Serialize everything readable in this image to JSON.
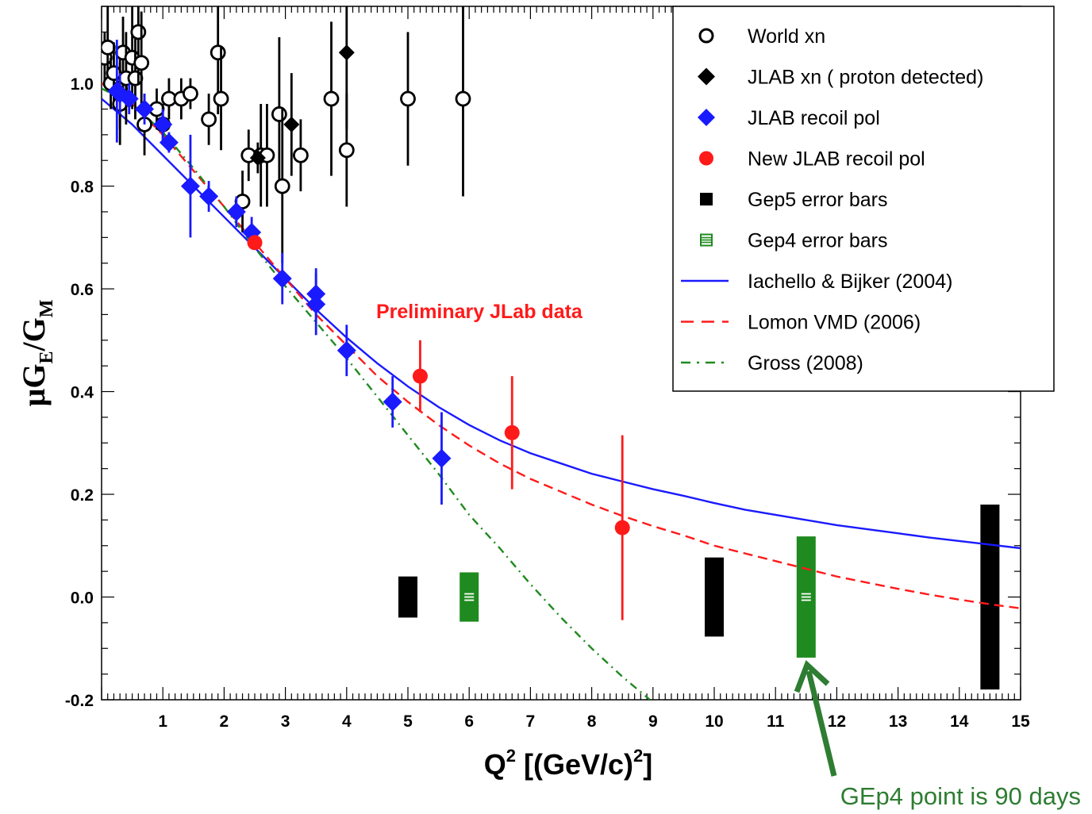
{
  "chart_data": {
    "type": "scatter",
    "xlabel": {
      "main": "Q",
      "sup": "2",
      "pre": " [(GeV/c)",
      "sup2": "2",
      "post": "]"
    },
    "ylabel": {
      "mu": "μ",
      "G1": "G",
      "sub1": "E",
      "slash": "/G",
      "sub2": "M"
    },
    "xlim": [
      0,
      15
    ],
    "ylim": [
      -0.2,
      1.15
    ],
    "x_ticks": [
      "1",
      "2",
      "3",
      "4",
      "5",
      "6",
      "7",
      "8",
      "9",
      "10",
      "11",
      "12",
      "13",
      "14",
      "15"
    ],
    "y_ticks": [
      "-0.2",
      "0.0",
      "0.2",
      "0.4",
      "0.6",
      "0.8",
      "1.0"
    ],
    "y_tick_values": [
      -0.2,
      0.0,
      0.2,
      0.4,
      0.6,
      0.8,
      1.0
    ],
    "annotation_preliminary": "Preliminary JLab data",
    "annotation_arrow": "GEp4 point is 90 days",
    "legend": [
      {
        "label": "World xn",
        "marker": "open-circle",
        "color": "#000000"
      },
      {
        "label": "JLAB xn ( proton  detected)",
        "marker": "diamond",
        "color": "#000000"
      },
      {
        "label": "JLAB recoil pol",
        "marker": "diamond",
        "color": "#1a1aff"
      },
      {
        "label": "New JLAB recoil pol",
        "marker": "circle",
        "color": "#ff1a1a"
      },
      {
        "label": "Gep5 error bars",
        "marker": "square",
        "color": "#000000"
      },
      {
        "label": "Gep4 error bars",
        "marker": "hatched-square",
        "color": "#1f8a1f"
      },
      {
        "label": "Iachello & Bijker (2004)",
        "marker": "solid-line",
        "color": "#1a1aff"
      },
      {
        "label": "Lomon VMD (2006)",
        "marker": "dashed-line",
        "color": "#ff1a1a"
      },
      {
        "label": "Gross (2008)",
        "marker": "dashdot-line",
        "color": "#1f8a1f"
      }
    ],
    "series": [
      {
        "name": "World xn",
        "color": "#000000",
        "marker": "open-circle",
        "points": [
          [
            0.05,
            1.05,
            0.05
          ],
          [
            0.1,
            1.07,
            0.08
          ],
          [
            0.15,
            1.0,
            0.05
          ],
          [
            0.2,
            1.02,
            0.06
          ],
          [
            0.3,
            0.99,
            0.08
          ],
          [
            0.3,
            0.96,
            0.08
          ],
          [
            0.35,
            1.06,
            0.07
          ],
          [
            0.4,
            1.01,
            0.09
          ],
          [
            0.5,
            1.05,
            0.1
          ],
          [
            0.55,
            1.01,
            0.08
          ],
          [
            0.6,
            1.1,
            0.1
          ],
          [
            0.65,
            1.04,
            0.1
          ],
          [
            0.7,
            0.92,
            0.06
          ],
          [
            0.9,
            0.95,
            0.04
          ],
          [
            1.0,
            0.92,
            0.04
          ],
          [
            1.1,
            0.97,
            0.04
          ],
          [
            1.3,
            0.97,
            0.04
          ],
          [
            1.45,
            0.98,
            0.03
          ],
          [
            1.75,
            0.93,
            0.05
          ],
          [
            1.9,
            1.06,
            0.12
          ],
          [
            1.95,
            0.97,
            0.1
          ],
          [
            2.3,
            0.77,
            0.06
          ],
          [
            2.4,
            0.86,
            0.05
          ],
          [
            2.6,
            0.86,
            0.1
          ],
          [
            2.7,
            0.86,
            0.1
          ],
          [
            2.9,
            0.94,
            0.15
          ],
          [
            2.95,
            0.8,
            0.15
          ],
          [
            3.25,
            0.86,
            0.07
          ],
          [
            3.75,
            0.97,
            0.15
          ],
          [
            4.0,
            0.87,
            0.11
          ],
          [
            5.0,
            0.97,
            0.13
          ],
          [
            5.9,
            0.97,
            0.19
          ]
        ]
      },
      {
        "name": "JLAB xn ( proton  detected)",
        "color": "#000000",
        "marker": "diamond",
        "points": [
          [
            2.55,
            0.855,
            0.03
          ],
          [
            3.1,
            0.92,
            0.1
          ],
          [
            4.0,
            1.06,
            0.15
          ]
        ]
      },
      {
        "name": "JLAB recoil pol",
        "color": "#1a1aff",
        "marker": "diamond",
        "points": [
          [
            0.25,
            0.985,
            0.1
          ],
          [
            0.3,
            0.98,
            0.04
          ],
          [
            0.45,
            0.97,
            0.03
          ],
          [
            0.7,
            0.95,
            0.03
          ],
          [
            1.0,
            0.92,
            0.03
          ],
          [
            1.1,
            0.885,
            0.02
          ],
          [
            1.45,
            0.8,
            0.1
          ],
          [
            1.75,
            0.78,
            0.03
          ],
          [
            2.2,
            0.75,
            0.03
          ],
          [
            2.45,
            0.71,
            0.03
          ],
          [
            2.95,
            0.62,
            0.05
          ],
          [
            3.5,
            0.59,
            0.05
          ],
          [
            3.5,
            0.57,
            0.06
          ],
          [
            4.0,
            0.48,
            0.05
          ],
          [
            4.75,
            0.38,
            0.05
          ],
          [
            5.55,
            0.27,
            0.09
          ]
        ]
      },
      {
        "name": "New JLAB recoil pol",
        "color": "#ff1a1a",
        "marker": "circle",
        "points": [
          [
            2.5,
            0.69,
            0.01
          ],
          [
            5.2,
            0.43,
            0.07
          ],
          [
            6.7,
            0.32,
            0.11
          ],
          [
            8.5,
            0.135,
            0.18
          ]
        ]
      },
      {
        "name": "Gep5 error bars",
        "color": "#000000",
        "marker": "bar",
        "points": [
          [
            5.0,
            0.0,
            0.04
          ],
          [
            10.0,
            0.0,
            0.077
          ],
          [
            14.5,
            0.0,
            0.18
          ]
        ]
      },
      {
        "name": "Gep4 error bars",
        "color": "#1f8a1f",
        "marker": "hatched-bar",
        "points": [
          [
            6.0,
            0.0,
            0.048
          ],
          [
            11.5,
            0.0,
            0.118
          ]
        ]
      }
    ],
    "curves": [
      {
        "name": "Iachello & Bijker (2004)",
        "color": "#1a1aff",
        "style": "solid",
        "x": [
          0,
          0.5,
          1,
          1.5,
          2,
          2.5,
          3,
          3.5,
          4,
          4.5,
          5,
          5.5,
          6,
          6.5,
          7,
          7.5,
          8,
          8.5,
          9,
          9.5,
          10,
          10.5,
          11,
          11.5,
          12,
          12.5,
          13,
          13.5,
          14,
          14.5,
          15
        ],
        "y": [
          0.97,
          0.92,
          0.86,
          0.8,
          0.74,
          0.68,
          0.62,
          0.56,
          0.505,
          0.455,
          0.41,
          0.37,
          0.335,
          0.305,
          0.28,
          0.26,
          0.24,
          0.225,
          0.21,
          0.197,
          0.183,
          0.17,
          0.16,
          0.15,
          0.14,
          0.132,
          0.124,
          0.116,
          0.109,
          0.102,
          0.095
        ]
      },
      {
        "name": "Lomon VMD (2006)",
        "color": "#ff1a1a",
        "style": "dashed",
        "x": [
          0,
          0.5,
          1,
          1.5,
          2,
          2.5,
          3,
          3.5,
          4,
          4.5,
          5,
          5.5,
          6,
          6.5,
          7,
          7.5,
          8,
          8.5,
          9,
          9.5,
          10,
          10.5,
          11,
          11.5,
          12,
          12.5,
          13,
          13.5,
          14,
          14.5,
          15
        ],
        "y": [
          1.0,
          0.96,
          0.9,
          0.83,
          0.76,
          0.69,
          0.62,
          0.55,
          0.49,
          0.43,
          0.38,
          0.335,
          0.295,
          0.26,
          0.23,
          0.205,
          0.18,
          0.158,
          0.138,
          0.12,
          0.1,
          0.085,
          0.07,
          0.055,
          0.04,
          0.028,
          0.016,
          0.005,
          -0.005,
          -0.014,
          -0.022
        ]
      },
      {
        "name": "Gross (2008)",
        "color": "#1f8a1f",
        "style": "dashdot",
        "x": [
          0,
          0.5,
          1,
          1.5,
          2,
          2.5,
          3,
          3.5,
          4,
          4.5,
          5,
          5.5,
          6,
          6.5,
          7,
          7.5,
          8,
          8.5,
          8.95
        ],
        "y": [
          0.99,
          0.96,
          0.905,
          0.835,
          0.76,
          0.68,
          0.605,
          0.535,
          0.465,
          0.39,
          0.315,
          0.24,
          0.16,
          0.095,
          0.025,
          -0.04,
          -0.1,
          -0.155,
          -0.2
        ]
      }
    ]
  }
}
